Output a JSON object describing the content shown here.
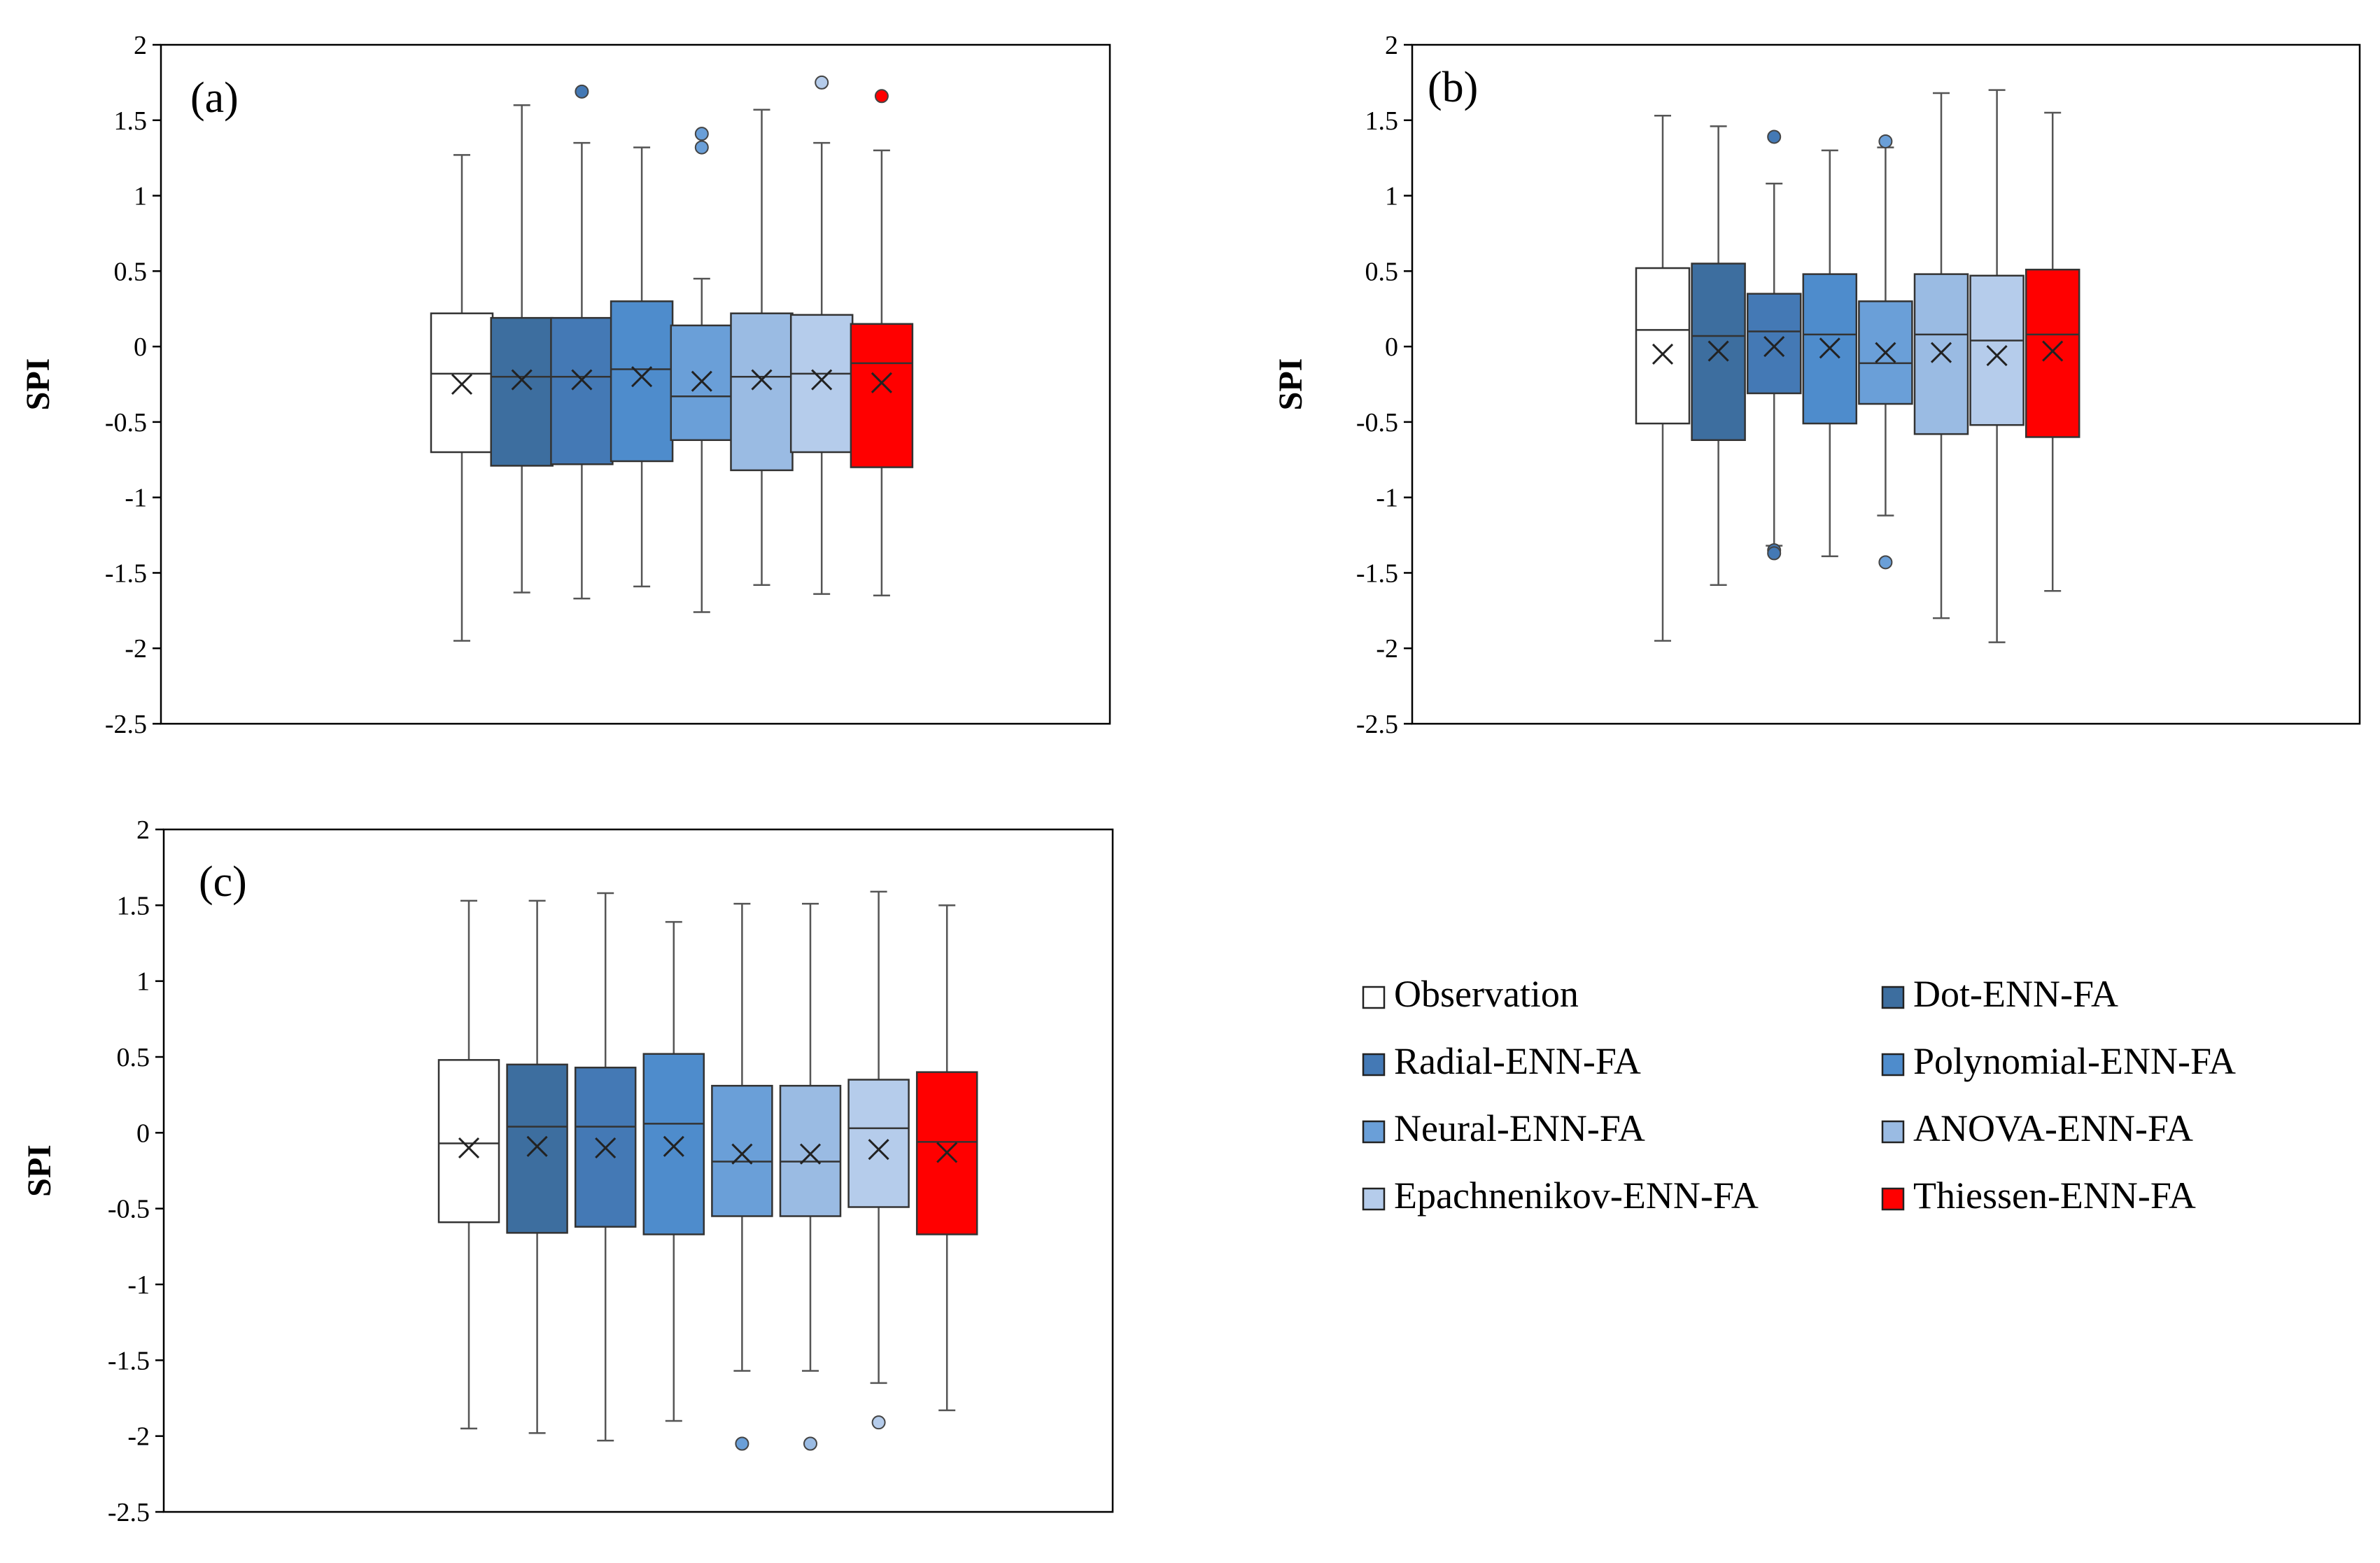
{
  "chart_data": [
    {
      "type": "box",
      "panel_label": "(a)",
      "ylabel": "SPI",
      "ylim": [
        -2.5,
        2
      ],
      "yticks": [
        2,
        1.5,
        1,
        0.5,
        0,
        -0.5,
        -1,
        -1.5,
        -2,
        -2.5
      ],
      "tick_labels": [
        "2",
        "1.5",
        "1",
        "0.5",
        "0",
        "-0.5",
        "-1",
        "-1.5",
        "-2",
        "-2.5"
      ],
      "grid": false,
      "boxes": [
        {
          "series": "Observation",
          "min": -1.95,
          "q1": -0.7,
          "median": -0.18,
          "q3": 0.22,
          "max": 1.27,
          "mean": -0.25,
          "outliers": []
        },
        {
          "series": "Dot-ENN-FA",
          "min": -1.63,
          "q1": -0.79,
          "median": -0.2,
          "q3": 0.19,
          "max": 1.6,
          "mean": -0.22,
          "outliers": []
        },
        {
          "series": "Radial-ENN-FA",
          "min": -1.67,
          "q1": -0.78,
          "median": -0.2,
          "q3": 0.19,
          "max": 1.35,
          "mean": -0.22,
          "outliers": [
            1.69
          ]
        },
        {
          "series": "Polynomial-ENN-FA",
          "min": -1.59,
          "q1": -0.76,
          "median": -0.15,
          "q3": 0.3,
          "max": 1.32,
          "mean": -0.2,
          "outliers": []
        },
        {
          "series": "Neural-ENN-FA",
          "min": -1.76,
          "q1": -0.62,
          "median": -0.33,
          "q3": 0.14,
          "max": 0.45,
          "mean": -0.23,
          "outliers": [
            1.41,
            1.32
          ]
        },
        {
          "series": "ANOVA-ENN-FA",
          "min": -1.58,
          "q1": -0.82,
          "median": -0.2,
          "q3": 0.22,
          "max": 1.57,
          "mean": -0.22,
          "outliers": []
        },
        {
          "series": "Epachnenikov-ENN-FA",
          "min": -1.64,
          "q1": -0.7,
          "median": -0.18,
          "q3": 0.21,
          "max": 1.35,
          "mean": -0.22,
          "outliers": [
            1.75
          ]
        },
        {
          "series": "Thiessen-ENN-FA",
          "min": -1.65,
          "q1": -0.8,
          "median": -0.11,
          "q3": 0.15,
          "max": 1.3,
          "mean": -0.24,
          "outliers": [
            1.66
          ]
        }
      ]
    },
    {
      "type": "box",
      "panel_label": "(b)",
      "ylabel": "SPI",
      "ylim": [
        -2.5,
        2
      ],
      "yticks": [
        2,
        1.5,
        1,
        0.5,
        0,
        -0.5,
        -1,
        -1.5,
        -2,
        -2.5
      ],
      "tick_labels": [
        "2",
        "1.5",
        "1",
        "0.5",
        "0",
        "-0.5",
        "-1",
        "-1.5",
        "-2",
        "-2.5"
      ],
      "grid": false,
      "boxes": [
        {
          "series": "Observation",
          "min": -1.95,
          "q1": -0.51,
          "median": 0.11,
          "q3": 0.52,
          "max": 1.53,
          "mean": -0.05,
          "outliers": []
        },
        {
          "series": "Dot-ENN-FA",
          "min": -1.58,
          "q1": -0.62,
          "median": 0.07,
          "q3": 0.55,
          "max": 1.46,
          "mean": -0.03,
          "outliers": []
        },
        {
          "series": "Radial-ENN-FA",
          "min": -1.32,
          "q1": -0.31,
          "median": 0.1,
          "q3": 0.35,
          "max": 1.08,
          "mean": 0.0,
          "outliers": [
            1.39,
            -1.35,
            -1.37
          ]
        },
        {
          "series": "Polynomial-ENN-FA",
          "min": -1.39,
          "q1": -0.51,
          "median": 0.08,
          "q3": 0.48,
          "max": 1.3,
          "mean": -0.01,
          "outliers": []
        },
        {
          "series": "Neural-ENN-FA",
          "min": -1.12,
          "q1": -0.38,
          "median": -0.11,
          "q3": 0.3,
          "max": 1.32,
          "mean": -0.04,
          "outliers": [
            1.36,
            -1.43
          ]
        },
        {
          "series": "ANOVA-ENN-FA",
          "min": -1.8,
          "q1": -0.58,
          "median": 0.08,
          "q3": 0.48,
          "max": 1.68,
          "mean": -0.04,
          "outliers": []
        },
        {
          "series": "Epachnenikov-ENN-FA",
          "min": -1.96,
          "q1": -0.52,
          "median": 0.04,
          "q3": 0.47,
          "max": 1.7,
          "mean": -0.06,
          "outliers": []
        },
        {
          "series": "Thiessen-ENN-FA",
          "min": -1.62,
          "q1": -0.6,
          "median": 0.08,
          "q3": 0.51,
          "max": 1.55,
          "mean": -0.03,
          "outliers": []
        }
      ]
    },
    {
      "type": "box",
      "panel_label": "(c)",
      "ylabel": "SPI",
      "ylim": [
        -2.5,
        2
      ],
      "yticks": [
        2,
        1.5,
        1,
        0.5,
        0,
        -0.5,
        -1,
        -1.5,
        -2,
        -2.5
      ],
      "tick_labels": [
        "2",
        "1.5",
        "1",
        "0.5",
        "0",
        "-0.5",
        "-1",
        "-1.5",
        "-2",
        "-2.5"
      ],
      "grid": false,
      "boxes": [
        {
          "series": "Observation",
          "min": -1.95,
          "q1": -0.59,
          "median": -0.07,
          "q3": 0.48,
          "max": 1.53,
          "mean": -0.1,
          "outliers": []
        },
        {
          "series": "Dot-ENN-FA",
          "min": -1.98,
          "q1": -0.66,
          "median": 0.04,
          "q3": 0.45,
          "max": 1.53,
          "mean": -0.09,
          "outliers": []
        },
        {
          "series": "Radial-ENN-FA",
          "min": -2.03,
          "q1": -0.62,
          "median": 0.04,
          "q3": 0.43,
          "max": 1.58,
          "mean": -0.1,
          "outliers": []
        },
        {
          "series": "Polynomial-ENN-FA",
          "min": -1.9,
          "q1": -0.67,
          "median": 0.06,
          "q3": 0.52,
          "max": 1.39,
          "mean": -0.09,
          "outliers": []
        },
        {
          "series": "Neural-ENN-FA",
          "min": -1.57,
          "q1": -0.55,
          "median": -0.19,
          "q3": 0.31,
          "max": 1.51,
          "mean": -0.14,
          "outliers": [
            -2.05
          ]
        },
        {
          "series": "ANOVA-ENN-FA",
          "min": -1.57,
          "q1": -0.55,
          "median": -0.19,
          "q3": 0.31,
          "max": 1.51,
          "mean": -0.14,
          "outliers": [
            -2.05
          ]
        },
        {
          "series": "Epachnenikov-ENN-FA",
          "min": -1.65,
          "q1": -0.49,
          "median": 0.03,
          "q3": 0.35,
          "max": 1.59,
          "mean": -0.11,
          "outliers": [
            -1.91
          ]
        },
        {
          "series": "Thiessen-ENN-FA",
          "min": -1.83,
          "q1": -0.67,
          "median": -0.06,
          "q3": 0.4,
          "max": 1.5,
          "mean": -0.13,
          "outliers": []
        }
      ]
    }
  ],
  "legend": {
    "placement": "bottom-right",
    "items": [
      {
        "label": "Observation",
        "color": "#ffffff"
      },
      {
        "label": "Dot-ENN-FA",
        "color": "#3d6e9f"
      },
      {
        "label": "Radial-ENN-FA",
        "color": "#4479b5"
      },
      {
        "label": "Polynomial-ENN-FA",
        "color": "#4e8ccc"
      },
      {
        "label": "Neural-ENN-FA",
        "color": "#6a9fd8"
      },
      {
        "label": "ANOVA-ENN-FA",
        "color": "#9abbe3"
      },
      {
        "label": "Epachnenikov-ENN-FA",
        "color": "#b5cceb"
      },
      {
        "label": "Thiessen-ENN-FA",
        "color": "#ff0000"
      }
    ]
  }
}
